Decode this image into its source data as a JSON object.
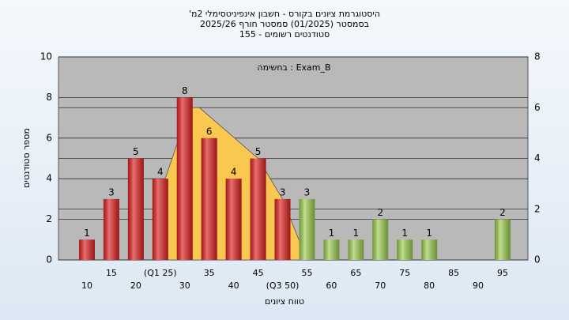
{
  "chart_data": {
    "type": "bar",
    "title": "היסטוגרמת ציונים בקורס - חשבון אינפיניטסימלי 2מ'",
    "subtitle": "בסמסטר (01/2025) סמסטר חורף 2025/26",
    "subtitle2": "סטודנטים רשומים - 155",
    "annotation": "בחשימה : Exam_B",
    "x_label": "טווח ציונים",
    "y_label": "מספר סטודנטים",
    "categories": [
      "10",
      "15",
      "20",
      "(Q1 25)",
      "30",
      "35",
      "40",
      "45",
      "(Q3 50)",
      "55",
      "60",
      "65",
      "70",
      "75",
      "80",
      "85",
      "90",
      "95"
    ],
    "values": [
      1,
      3,
      5,
      4,
      8,
      6,
      4,
      5,
      3,
      3,
      1,
      1,
      2,
      1,
      1,
      0,
      0,
      2
    ],
    "colors": [
      "#e02020",
      "#e02020",
      "#e02020",
      "#e02020",
      "#e02020",
      "#e02020",
      "#e02020",
      "#e02020",
      "#e02020",
      "#9ccc50",
      "#9ccc50",
      "#9ccc50",
      "#9ccc50",
      "#9ccc50",
      "#9ccc50",
      "#9ccc50",
      "#9ccc50",
      "#9ccc50"
    ],
    "area": {
      "x": [
        3,
        4.2,
        4.6,
        7,
        8,
        9
      ],
      "values": [
        3.3,
        7.5,
        7.5,
        5,
        3,
        0
      ],
      "color": "#f8c850"
    },
    "ylim": [
      0,
      10
    ],
    "yticks": [
      0,
      2,
      4,
      6,
      8,
      10
    ],
    "y2lim": [
      0,
      8
    ],
    "y2ticks": [
      0,
      2,
      4,
      6,
      8
    ],
    "grid": true
  }
}
